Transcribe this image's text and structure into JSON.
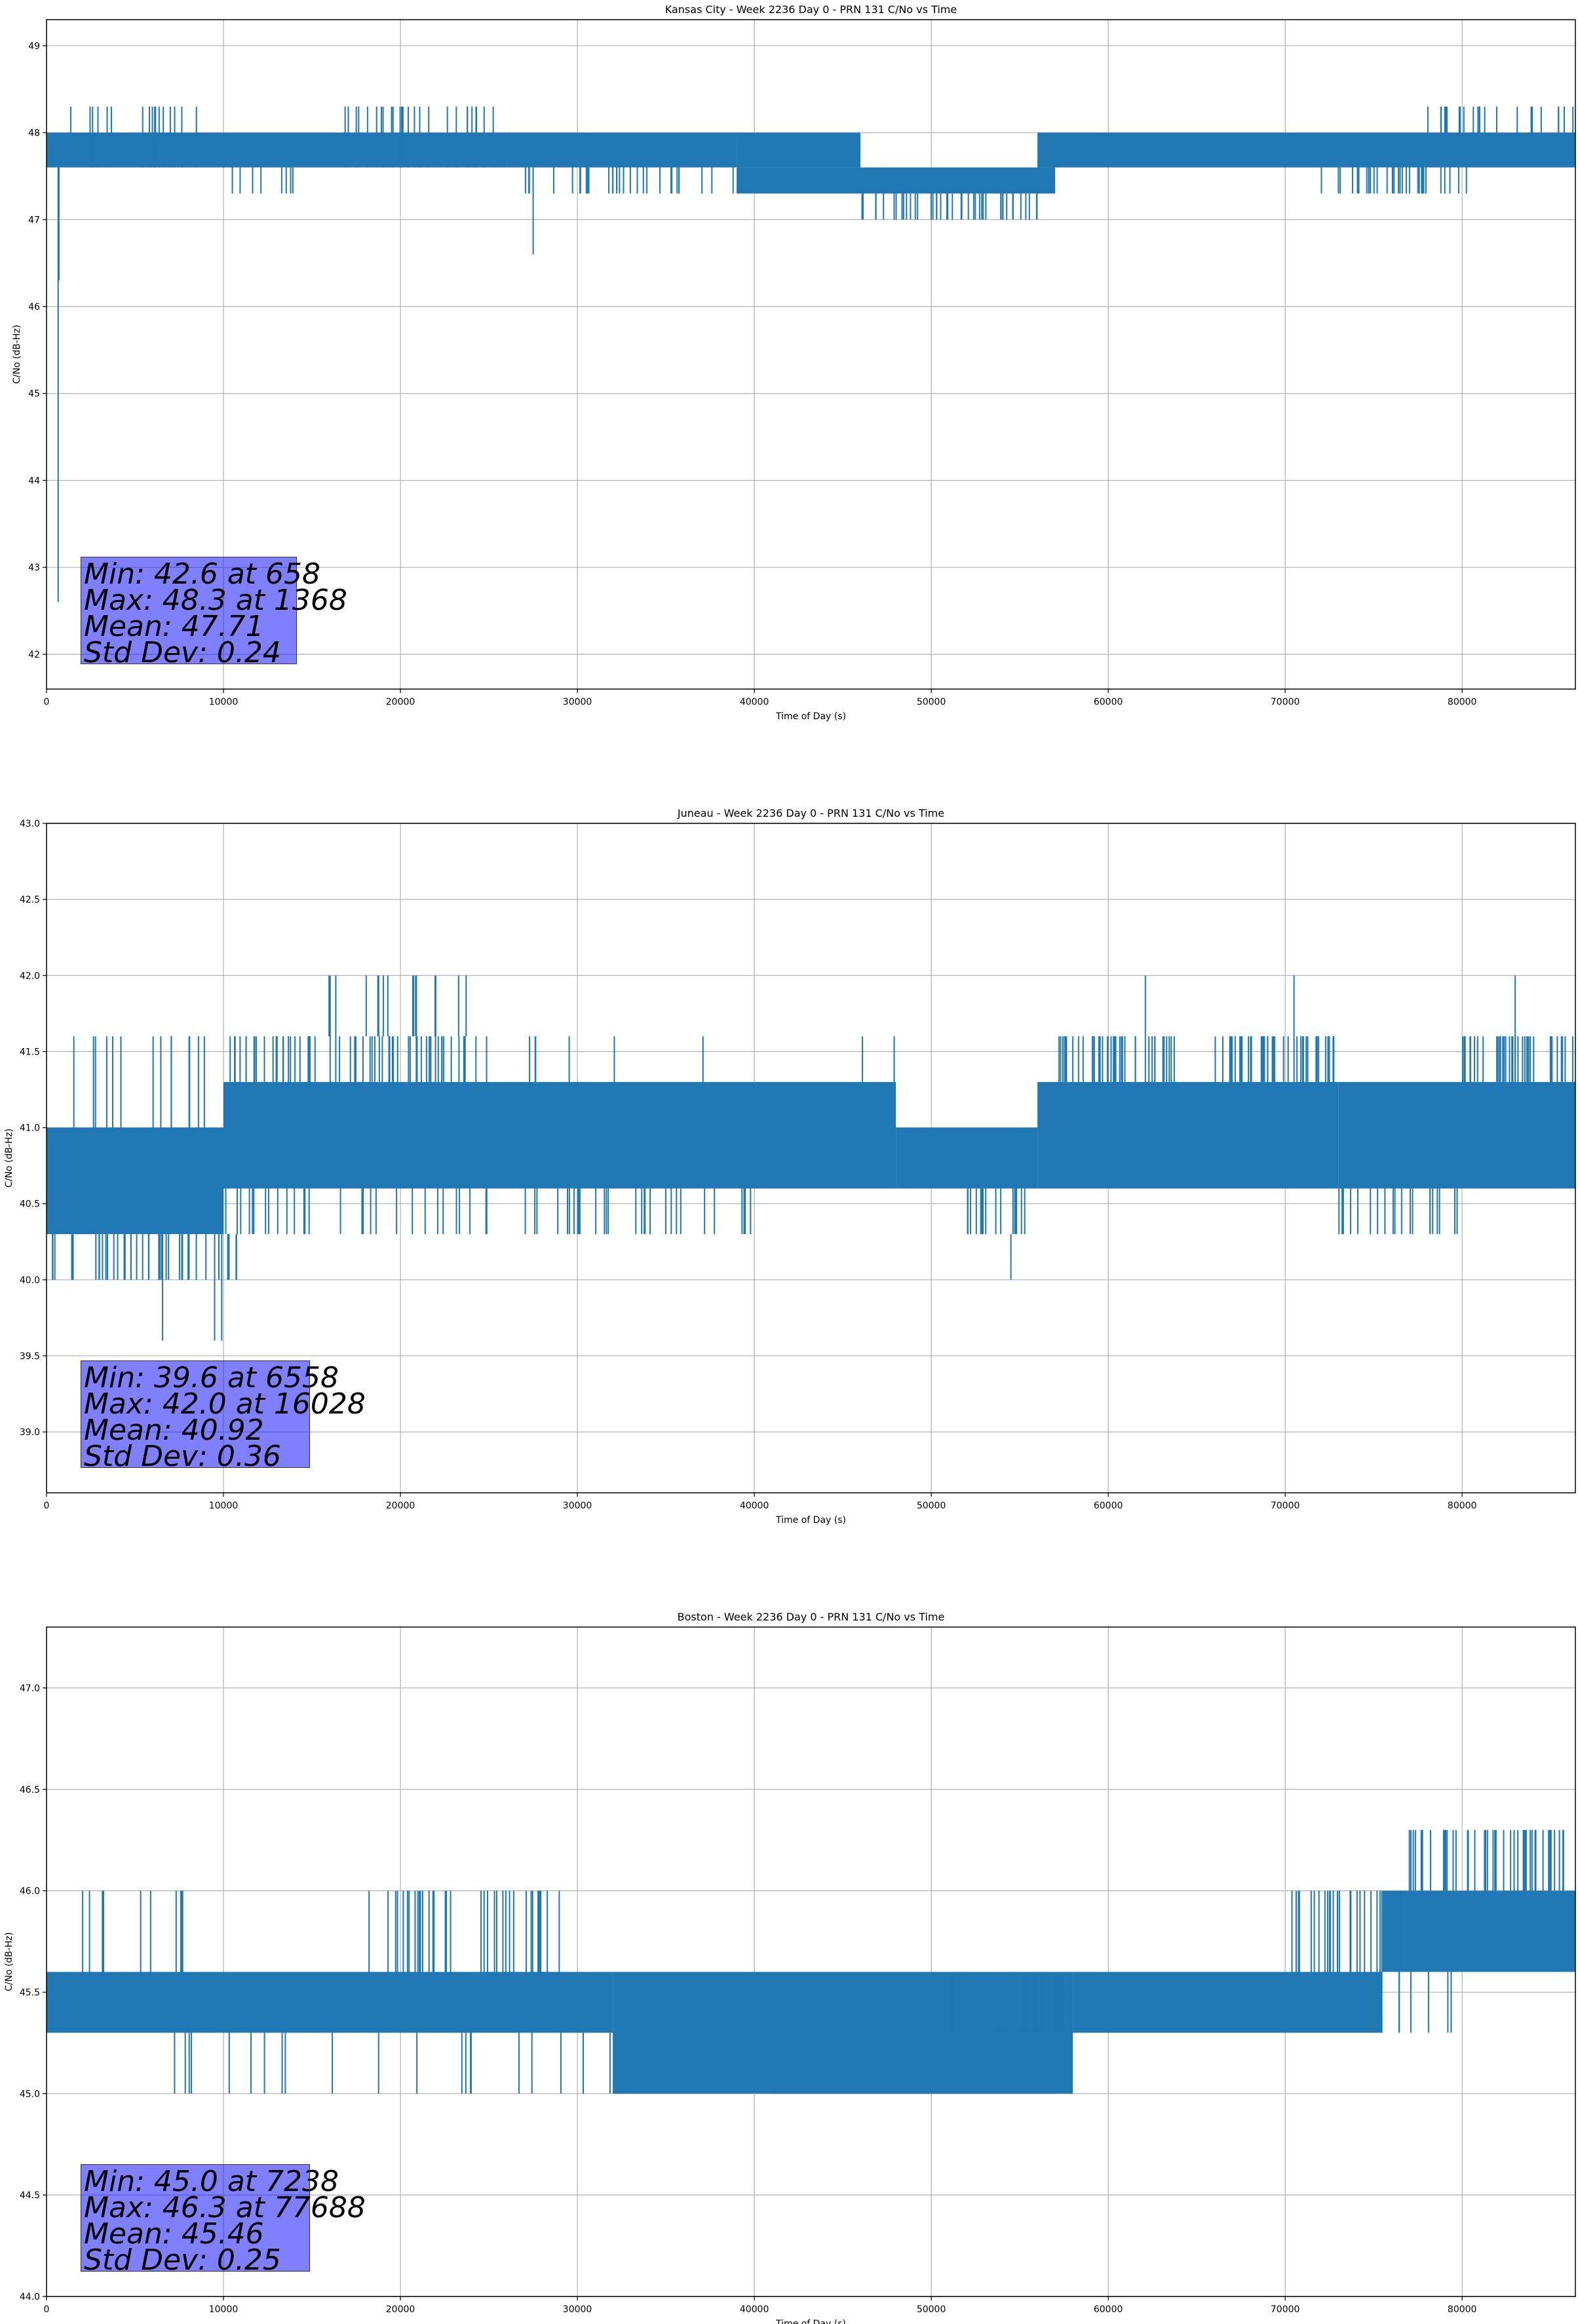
{
  "chart_data": [
    {
      "type": "line",
      "title": "Kansas City - Week 2236 Day 0 - PRN 131 C/No vs Time",
      "xlabel": "Time of Day (s)",
      "ylabel": "C/No (dB-Hz)",
      "xlim": [
        0,
        86400
      ],
      "ylim": [
        41.6,
        49.3
      ],
      "xticks": [
        0,
        10000,
        20000,
        30000,
        40000,
        50000,
        60000,
        70000,
        80000
      ],
      "yticks": [
        42,
        43,
        44,
        45,
        46,
        47,
        48,
        49
      ],
      "ytick_labels": [
        "42",
        "43",
        "44",
        "45",
        "46",
        "47",
        "48",
        "49"
      ],
      "grid": true,
      "series_color": "#1f77b4",
      "stats": [
        "Min: 42.6 at 658",
        "Max: 48.3 at 1368",
        "Mean: 47.71",
        "Std Dev: 0.24"
      ],
      "band_segments": [
        {
          "x": [
            0,
            26000
          ],
          "lo": 47.6,
          "hi": 48.0
        },
        {
          "x": [
            26000,
            39000
          ],
          "lo": 47.6,
          "hi": 48.0
        },
        {
          "x": [
            39000,
            46000
          ],
          "lo": 47.6,
          "hi": 48.0
        },
        {
          "x": [
            39000,
            57000
          ],
          "lo": 47.3,
          "hi": 47.6
        },
        {
          "x": [
            56000,
            86400
          ],
          "lo": 47.6,
          "hi": 48.0
        }
      ],
      "spikes": [
        {
          "x": 658,
          "y": 42.6
        },
        {
          "x": 700,
          "y": 46.3
        },
        {
          "x": 1368,
          "y": 48.3
        },
        {
          "x": 27500,
          "y": 46.6
        },
        {
          "x": 47300,
          "y": 47.0
        },
        {
          "x": 48600,
          "y": 47.0
        },
        {
          "x": 50300,
          "y": 47.0
        }
      ],
      "excursions": [
        {
          "x": [
            1200,
            8500
          ],
          "lo": 47.6,
          "hi": 48.3,
          "n": 16
        },
        {
          "x": [
            10000,
            14500
          ],
          "lo": 47.3,
          "hi": 47.6,
          "n": 8
        },
        {
          "x": [
            16000,
            25500
          ],
          "lo": 47.6,
          "hi": 48.3,
          "n": 26
        },
        {
          "x": [
            27000,
            39500
          ],
          "lo": 47.3,
          "hi": 47.6,
          "n": 30
        },
        {
          "x": [
            46000,
            56000
          ],
          "lo": 47.0,
          "hi": 47.3,
          "n": 40
        },
        {
          "x": [
            72000,
            80500
          ],
          "lo": 47.3,
          "hi": 47.6,
          "n": 34
        },
        {
          "x": [
            78000,
            86400
          ],
          "lo": 48.0,
          "hi": 48.3,
          "n": 24
        }
      ]
    },
    {
      "type": "line",
      "title": "Juneau - Week 2236 Day 0 - PRN 131 C/No vs Time",
      "xlabel": "Time of Day (s)",
      "ylabel": "C/No (dB-Hz)",
      "xlim": [
        0,
        86400
      ],
      "ylim": [
        38.6,
        43.0
      ],
      "xticks": [
        0,
        10000,
        20000,
        30000,
        40000,
        50000,
        60000,
        70000,
        80000
      ],
      "yticks": [
        39.0,
        39.5,
        40.0,
        40.5,
        41.0,
        41.5,
        42.0,
        42.5,
        43.0
      ],
      "ytick_labels": [
        "39.0",
        "39.5",
        "40.0",
        "40.5",
        "41.0",
        "41.5",
        "42.0",
        "42.5",
        "43.0"
      ],
      "grid": true,
      "series_color": "#1f77b4",
      "stats": [
        "Min: 39.6 at 6558",
        "Max: 42.0 at 16028",
        "Mean: 40.92",
        "Std Dev: 0.36"
      ],
      "band_segments": [
        {
          "x": [
            0,
            10000
          ],
          "lo": 40.3,
          "hi": 41.0
        },
        {
          "x": [
            10000,
            48000
          ],
          "lo": 40.6,
          "hi": 41.3
        },
        {
          "x": [
            48000,
            56000
          ],
          "lo": 40.6,
          "hi": 41.0
        },
        {
          "x": [
            56000,
            73000
          ],
          "lo": 40.6,
          "hi": 41.3
        },
        {
          "x": [
            73000,
            86400
          ],
          "lo": 40.6,
          "hi": 41.3
        }
      ],
      "spikes": [
        {
          "x": 6558,
          "y": 39.6
        },
        {
          "x": 9500,
          "y": 39.6
        },
        {
          "x": 9900,
          "y": 39.6
        },
        {
          "x": 16028,
          "y": 42.0
        },
        {
          "x": 20900,
          "y": 42.0
        },
        {
          "x": 62100,
          "y": 42.0
        },
        {
          "x": 70500,
          "y": 42.0
        },
        {
          "x": 83000,
          "y": 42.0
        },
        {
          "x": 54500,
          "y": 40.0
        }
      ],
      "excursions": [
        {
          "x": [
            0,
            11000
          ],
          "lo": 40.0,
          "hi": 40.3,
          "n": 40
        },
        {
          "x": [
            0,
            9000
          ],
          "lo": 41.0,
          "hi": 41.6,
          "n": 14
        },
        {
          "x": [
            10000,
            25000
          ],
          "lo": 41.3,
          "hi": 41.6,
          "n": 60
        },
        {
          "x": [
            14000,
            24000
          ],
          "lo": 41.6,
          "hi": 42.0,
          "n": 14
        },
        {
          "x": [
            10000,
            40000
          ],
          "lo": 40.3,
          "hi": 40.6,
          "n": 60
        },
        {
          "x": [
            25000,
            50000
          ],
          "lo": 41.3,
          "hi": 41.6,
          "n": 8
        },
        {
          "x": [
            52000,
            56000
          ],
          "lo": 40.3,
          "hi": 40.6,
          "n": 16
        },
        {
          "x": [
            57000,
            64000
          ],
          "lo": 41.3,
          "hi": 41.6,
          "n": 40
        },
        {
          "x": [
            66000,
            73000
          ],
          "lo": 41.3,
          "hi": 41.6,
          "n": 40
        },
        {
          "x": [
            73000,
            80000
          ],
          "lo": 40.3,
          "hi": 40.6,
          "n": 20
        },
        {
          "x": [
            80000,
            86400
          ],
          "lo": 41.3,
          "hi": 41.6,
          "n": 36
        }
      ]
    },
    {
      "type": "line",
      "title": "Boston - Week 2236 Day 0 - PRN 131 C/No vs Time",
      "xlabel": "Time of Day (s)",
      "ylabel": "C/No (dB-Hz)",
      "xlim": [
        0,
        86400
      ],
      "ylim": [
        44.0,
        47.3
      ],
      "xticks": [
        0,
        10000,
        20000,
        30000,
        40000,
        50000,
        60000,
        70000,
        80000
      ],
      "yticks": [
        44.0,
        44.5,
        45.0,
        45.5,
        46.0,
        46.5,
        47.0
      ],
      "ytick_labels": [
        "44.0",
        "44.5",
        "45.0",
        "45.5",
        "46.0",
        "46.5",
        "47.0"
      ],
      "grid": true,
      "series_color": "#1f77b4",
      "stats": [
        "Min: 45.0 at 7238",
        "Max: 46.3 at 77688",
        "Mean: 45.46",
        "Std Dev: 0.25"
      ],
      "band_segments": [
        {
          "x": [
            0,
            32000
          ],
          "lo": 45.3,
          "hi": 45.6
        },
        {
          "x": [
            32000,
            58000
          ],
          "lo": 45.0,
          "hi": 45.6
        },
        {
          "x": [
            41000,
            57000
          ],
          "lo": 45.0,
          "hi": 45.3
        },
        {
          "x": [
            58000,
            75500
          ],
          "lo": 45.3,
          "hi": 45.6
        },
        {
          "x": [
            75500,
            86400
          ],
          "lo": 45.6,
          "hi": 46.0
        }
      ],
      "spikes": [
        {
          "x": 7238,
          "y": 45.0
        },
        {
          "x": 77688,
          "y": 46.3
        }
      ],
      "excursions": [
        {
          "x": [
            500,
            9000
          ],
          "lo": 45.6,
          "hi": 46.0,
          "n": 10
        },
        {
          "x": [
            7000,
            15000
          ],
          "lo": 45.0,
          "hi": 45.3,
          "n": 8
        },
        {
          "x": [
            18000,
            29000
          ],
          "lo": 45.6,
          "hi": 46.0,
          "n": 36
        },
        {
          "x": [
            16000,
            32000
          ],
          "lo": 45.0,
          "hi": 45.3,
          "n": 12
        },
        {
          "x": [
            50000,
            58000
          ],
          "lo": 45.3,
          "hi": 45.6,
          "n": 40
        },
        {
          "x": [
            70000,
            77000
          ],
          "lo": 45.6,
          "hi": 46.0,
          "n": 30
        },
        {
          "x": [
            77000,
            86000
          ],
          "lo": 46.0,
          "hi": 46.3,
          "n": 44
        },
        {
          "x": [
            76000,
            80000
          ],
          "lo": 45.3,
          "hi": 45.6,
          "n": 6
        }
      ]
    }
  ]
}
